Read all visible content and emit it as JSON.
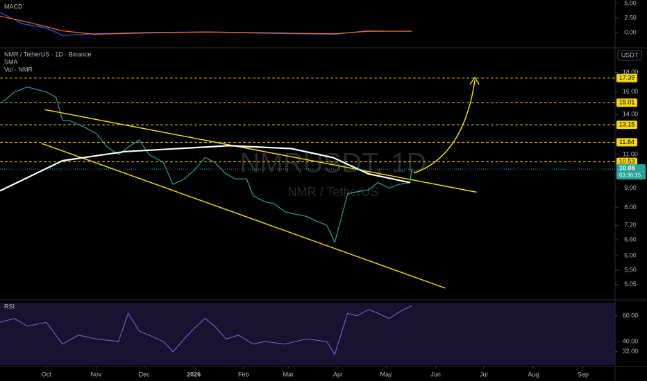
{
  "chart_data": [
    {
      "type": "line",
      "title": "NMR / TetherUS · 1D · Binance",
      "watermark": "NMRUSDT, 1D",
      "watermark_subtitle": "NMR / TetherUS",
      "indicators": [
        "SMA",
        "Vol · NMR"
      ],
      "currency": "USDT",
      "log_scale": true,
      "xlim": [
        -29,
        355
      ],
      "xticks": [
        {
          "value": 0,
          "label": "Oct"
        },
        {
          "value": 31,
          "label": "Nov"
        },
        {
          "value": 61,
          "label": "Dec"
        },
        {
          "value": 92,
          "label": "2026"
        },
        {
          "value": 123,
          "label": "Feb"
        },
        {
          "value": 151,
          "label": "Mar"
        },
        {
          "value": 182,
          "label": "Apr"
        },
        {
          "value": 212,
          "label": "May"
        },
        {
          "value": 243,
          "label": "Jun"
        },
        {
          "value": 273,
          "label": "Jul"
        },
        {
          "value": 304,
          "label": "Aug"
        },
        {
          "value": 335,
          "label": "Sep"
        }
      ],
      "ylim": [
        4.66,
        20.6
      ],
      "yticks": [
        {
          "value": 18,
          "label": "18.00"
        },
        {
          "value": 16,
          "label": "16.00"
        },
        {
          "value": 14,
          "label": "14.00"
        },
        {
          "value": 11,
          "label": "11.00"
        },
        {
          "value": 9,
          "label": "9.00"
        },
        {
          "value": 8,
          "label": "8.00"
        },
        {
          "value": 7.2,
          "label": "7.20"
        },
        {
          "value": 6.6,
          "label": "6.60"
        },
        {
          "value": 6,
          "label": "6.00"
        },
        {
          "value": 5.5,
          "label": "5.50"
        },
        5.05
      ],
      "levels": [
        17.39,
        15.01,
        13.15,
        11.84,
        10.53
      ],
      "level_color": "#f5d90a",
      "current_price": 10.08,
      "countdown": "03:36:15",
      "current_color": "#26a69a",
      "series": [
        {
          "color": "#26a69a",
          "x": [
            -28,
            -20,
            -12,
            0,
            6,
            10,
            14,
            23,
            31,
            38,
            45,
            51,
            58,
            64,
            73,
            79,
            86,
            92,
            99,
            105,
            112,
            118,
            125,
            129,
            136,
            142,
            149,
            155,
            162,
            168,
            175,
            180,
            184,
            188,
            194,
            201,
            207,
            214,
            220,
            227,
            228
          ],
          "values": [
            15,
            16,
            16.5,
            16,
            15.5,
            13.5,
            13.5,
            13,
            12.5,
            11.5,
            11,
            11.5,
            12,
            11,
            10.5,
            9.2,
            9.5,
            10,
            10.8,
            10.5,
            9.8,
            9.5,
            9.5,
            8.6,
            8.3,
            8.2,
            7.8,
            7.7,
            7.6,
            7.4,
            7.2,
            6.5,
            7.5,
            8.7,
            8.8,
            8.9,
            9.3,
            9.0,
            9.2,
            9.3,
            10.08
          ]
        },
        {
          "name": "SMA",
          "color": "#ffffff",
          "x": [
            -29,
            10,
            49,
            114,
            153,
            179,
            201,
            227
          ],
          "values": [
            8.85,
            10.6,
            11.2,
            11.6,
            11.4,
            10.8,
            9.8,
            9.3
          ]
        }
      ],
      "trendlines": [
        {
          "x": [
            -1,
            268.5
          ],
          "values": [
            14.4,
            8.78
          ]
        },
        {
          "x": [
            -3,
            249
          ],
          "values": [
            11.76,
            4.94
          ]
        }
      ],
      "trendline_color": "#f5d90a"
    },
    {
      "type": "line",
      "title": "RSI",
      "ylim": [
        21.6,
        70.3
      ],
      "yticks": [
        {
          "value": 60,
          "label": "60.00"
        },
        {
          "value": 40,
          "label": "40.00"
        },
        {
          "value": 32,
          "label": "32.00"
        }
      ],
      "series": [
        {
          "color": "#7e57c2",
          "x": [
            -29,
            -20,
            -12,
            0,
            10,
            20,
            31,
            45,
            51,
            58,
            64,
            73,
            79,
            86,
            92,
            99,
            105,
            112,
            120,
            129,
            136,
            149,
            162,
            175,
            180,
            188,
            194,
            201,
            207,
            214,
            220,
            228
          ],
          "values": [
            55,
            58,
            52,
            55,
            38,
            45,
            42,
            40,
            62,
            48,
            45,
            40,
            32,
            42,
            50,
            58,
            52,
            42,
            45,
            38,
            40,
            38,
            42,
            40,
            30,
            62,
            60,
            65,
            62,
            58,
            63,
            68
          ]
        }
      ]
    },
    {
      "type": "line",
      "title": "MACD",
      "ylim": [
        -2.5,
        5.35
      ],
      "yticks": [
        {
          "value": 5,
          "label": "5.00"
        },
        {
          "value": 2.5,
          "label": "2.50"
        },
        {
          "value": 0,
          "label": "0.00"
        }
      ],
      "series": [
        {
          "color": "#2962ff",
          "x": [
            -29,
            -15,
            0,
            10,
            30,
            60,
            100,
            150,
            180,
            200,
            228
          ],
          "values": [
            3.5,
            1.5,
            0.8,
            -0.5,
            -0.2,
            0,
            0.1,
            -0.2,
            -0.3,
            0.3,
            0.2
          ]
        },
        {
          "color": "#ff6d00",
          "x": [
            -29,
            -15,
            0,
            10,
            30,
            60,
            100,
            150,
            180,
            200,
            228
          ],
          "values": [
            2.8,
            2.0,
            1.0,
            0.3,
            -0.3,
            -0.1,
            0.1,
            -0.1,
            -0.2,
            0.2,
            0.25
          ]
        }
      ]
    }
  ]
}
